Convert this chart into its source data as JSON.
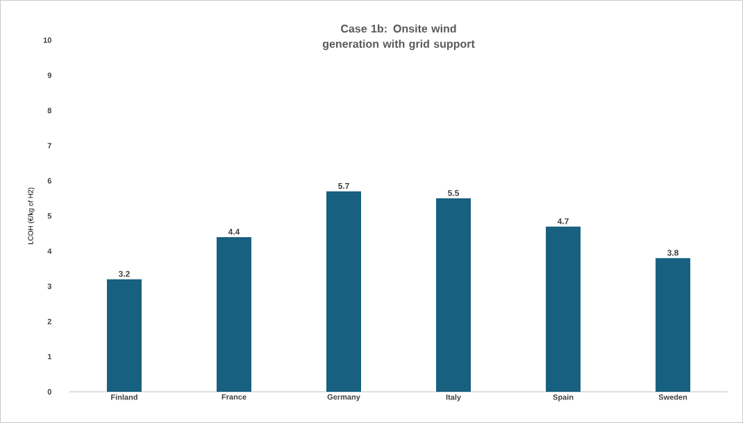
{
  "chart_data": {
    "type": "bar",
    "title": "Case 1b: Onsite wind generation with grid support",
    "ylabel": "LCOH (€/kg of H2)",
    "categories": [
      "Finland",
      "France",
      "Germany",
      "Italy",
      "Spain",
      "Sweden"
    ],
    "values": [
      3.2,
      4.4,
      5.7,
      5.5,
      4.7,
      3.8
    ],
    "color": "#18607f",
    "ylim": [
      0,
      10
    ],
    "yticks": [
      0,
      1,
      2,
      3,
      4,
      5,
      6,
      7,
      8,
      9,
      10
    ],
    "data_labels": true
  }
}
